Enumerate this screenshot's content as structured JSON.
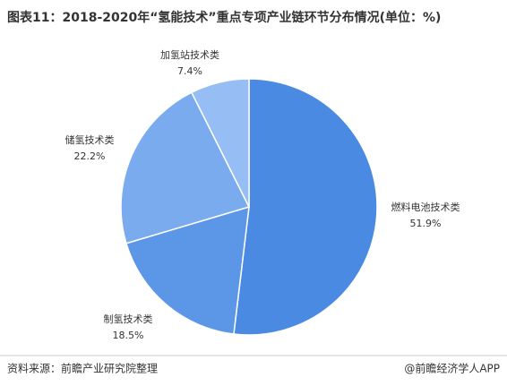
{
  "chart_data": {
    "type": "pie",
    "title": "图表11：2018-2020年“氢能技术”重点专项产业链环节分布情况(单位：%)",
    "categories": [
      "燃料电池技术类",
      "制氢技术类",
      "储氢技术类",
      "加氢站技术类"
    ],
    "values": [
      51.9,
      18.5,
      22.2,
      7.4
    ],
    "value_labels": [
      "51.9%",
      "18.5%",
      "22.2%",
      "7.4%"
    ],
    "colors": [
      "#4a8ae2",
      "#5c97e7",
      "#7aabee",
      "#96bef4"
    ]
  },
  "footer": {
    "source": "资料来源：前瞻产业研究院整理",
    "brand": "@前瞻经济学人APP"
  }
}
